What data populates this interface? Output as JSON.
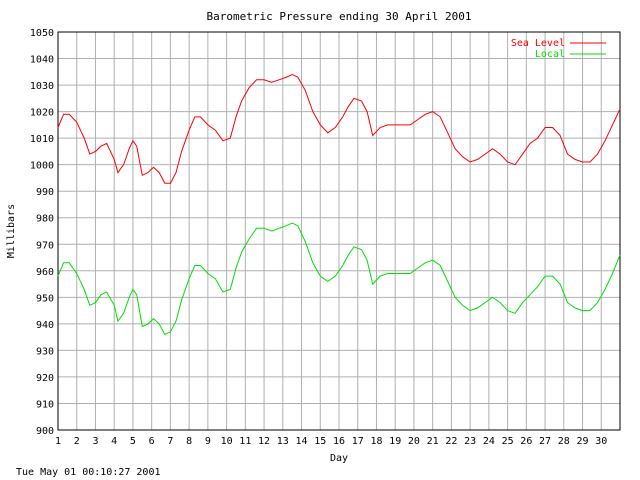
{
  "chart_data": {
    "type": "line",
    "title": "Barometric Pressure ending 30 April 2001",
    "xlabel": "Day",
    "ylabel": "Millibars",
    "xlim": [
      1,
      31
    ],
    "ylim": [
      900,
      1050
    ],
    "x_ticks": [
      "1",
      "2",
      "3",
      "4",
      "5",
      "6",
      "7",
      "8",
      "9",
      "10",
      "11",
      "12",
      "13",
      "14",
      "15",
      "16",
      "17",
      "18",
      "19",
      "20",
      "21",
      "22",
      "23",
      "24",
      "25",
      "26",
      "27",
      "28",
      "29",
      "30"
    ],
    "y_ticks": [
      900,
      910,
      920,
      930,
      940,
      950,
      960,
      970,
      980,
      990,
      1000,
      1010,
      1020,
      1030,
      1040,
      1050
    ],
    "grid": true,
    "legend_position": "top-right",
    "series": [
      {
        "name": "Sea Level",
        "color": "#ff0000",
        "x": [
          1,
          1.3,
          1.6,
          2.0,
          2.4,
          2.7,
          3.0,
          3.3,
          3.6,
          4.0,
          4.2,
          4.5,
          4.8,
          5.0,
          5.2,
          5.5,
          5.8,
          6.1,
          6.4,
          6.7,
          7.0,
          7.3,
          7.6,
          8.0,
          8.3,
          8.6,
          9.0,
          9.4,
          9.8,
          10.2,
          10.5,
          10.8,
          11.2,
          11.6,
          12.0,
          12.4,
          12.8,
          13.2,
          13.5,
          13.8,
          14.2,
          14.6,
          15.0,
          15.4,
          15.8,
          16.2,
          16.5,
          16.8,
          17.2,
          17.5,
          17.8,
          18.2,
          18.6,
          19.0,
          19.4,
          19.8,
          20.2,
          20.6,
          21.0,
          21.4,
          21.8,
          22.2,
          22.6,
          23.0,
          23.4,
          23.8,
          24.2,
          24.6,
          25.0,
          25.4,
          25.8,
          26.2,
          26.6,
          27.0,
          27.4,
          27.8,
          28.2,
          28.6,
          29.0,
          29.4,
          29.8,
          30.2,
          30.6,
          31.0
        ],
        "values": [
          1014,
          1019,
          1019,
          1016,
          1010,
          1004,
          1005,
          1007,
          1008,
          1002,
          997,
          1000,
          1006,
          1009,
          1007,
          996,
          997,
          999,
          997,
          993,
          993,
          997,
          1005,
          1013,
          1018,
          1018,
          1015,
          1013,
          1009,
          1010,
          1018,
          1024,
          1029,
          1032,
          1032,
          1031,
          1032,
          1033,
          1034,
          1033,
          1028,
          1020,
          1015,
          1012,
          1014,
          1018,
          1022,
          1025,
          1024,
          1020,
          1011,
          1014,
          1015,
          1015,
          1015,
          1015,
          1017,
          1019,
          1020,
          1018,
          1012,
          1006,
          1003,
          1001,
          1002,
          1004,
          1006,
          1004,
          1001,
          1000,
          1004,
          1008,
          1010,
          1014,
          1014,
          1011,
          1004,
          1002,
          1001,
          1001,
          1004,
          1009,
          1015,
          1021
        ]
      },
      {
        "name": "Local",
        "color": "#00e000",
        "x": [
          1,
          1.3,
          1.6,
          2.0,
          2.4,
          2.7,
          3.0,
          3.3,
          3.6,
          4.0,
          4.2,
          4.5,
          4.8,
          5.0,
          5.2,
          5.5,
          5.8,
          6.1,
          6.4,
          6.7,
          7.0,
          7.3,
          7.6,
          8.0,
          8.3,
          8.6,
          9.0,
          9.4,
          9.8,
          10.2,
          10.5,
          10.8,
          11.2,
          11.6,
          12.0,
          12.4,
          12.8,
          13.2,
          13.5,
          13.8,
          14.2,
          14.6,
          15.0,
          15.4,
          15.8,
          16.2,
          16.5,
          16.8,
          17.2,
          17.5,
          17.8,
          18.2,
          18.6,
          19.0,
          19.4,
          19.8,
          20.2,
          20.6,
          21.0,
          21.4,
          21.8,
          22.2,
          22.6,
          23.0,
          23.4,
          23.8,
          24.2,
          24.6,
          25.0,
          25.4,
          25.8,
          26.2,
          26.6,
          27.0,
          27.4,
          27.8,
          28.2,
          28.6,
          29.0,
          29.4,
          29.8,
          30.2,
          30.6,
          31.0
        ],
        "values": [
          958,
          963,
          963,
          959,
          953,
          947,
          948,
          951,
          952,
          947,
          941,
          944,
          950,
          953,
          951,
          939,
          940,
          942,
          940,
          936,
          937,
          941,
          949,
          957,
          962,
          962,
          959,
          957,
          952,
          953,
          961,
          967,
          972,
          976,
          976,
          975,
          976,
          977,
          978,
          977,
          971,
          963,
          958,
          956,
          958,
          962,
          966,
          969,
          968,
          964,
          955,
          958,
          959,
          959,
          959,
          959,
          961,
          963,
          964,
          962,
          956,
          950,
          947,
          945,
          946,
          948,
          950,
          948,
          945,
          944,
          948,
          951,
          954,
          958,
          958,
          955,
          948,
          946,
          945,
          945,
          948,
          953,
          959,
          966
        ]
      }
    ],
    "footer_timestamp": "Tue May 01 00:10:27 2001"
  }
}
